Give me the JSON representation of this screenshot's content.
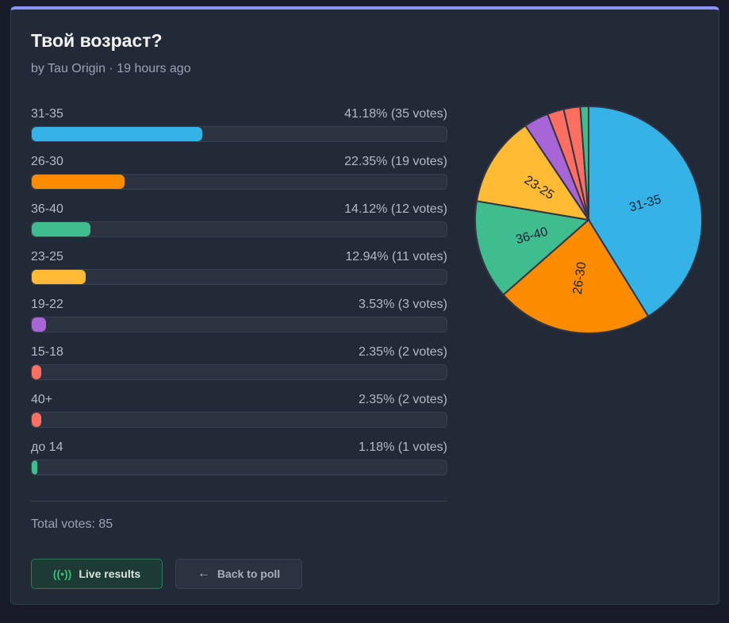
{
  "poll": {
    "title": "Твой возраст?",
    "meta": "by Tau Origin · 19 hours ago",
    "total_label": "Total votes: 85"
  },
  "chart_data": {
    "type": "pie",
    "slices": [
      {
        "label": "31-35",
        "percent": 41.18,
        "votes": 35,
        "display": "41.18% (35 votes)",
        "color": "#36b3e6"
      },
      {
        "label": "26-30",
        "percent": 22.35,
        "votes": 19,
        "display": "22.35% (19 votes)",
        "color": "#fb8c00"
      },
      {
        "label": "36-40",
        "percent": 14.12,
        "votes": 12,
        "display": "14.12% (12 votes)",
        "color": "#3fbd8e"
      },
      {
        "label": "23-25",
        "percent": 12.94,
        "votes": 11,
        "display": "12.94% (11 votes)",
        "color": "#ffbb33"
      },
      {
        "label": "19-22",
        "percent": 3.53,
        "votes": 3,
        "display": "3.53% (3 votes)",
        "color": "#a865d6"
      },
      {
        "label": "15-18",
        "percent": 2.35,
        "votes": 2,
        "display": "2.35% (2 votes)",
        "color": "#ff6f61"
      },
      {
        "label": "40+",
        "percent": 2.35,
        "votes": 2,
        "display": "2.35% (2 votes)",
        "color": "#ff6f61"
      },
      {
        "label": "до 14",
        "percent": 1.18,
        "votes": 1,
        "display": "1.18% (1 votes)",
        "color": "#3fbd8e"
      }
    ],
    "slice_labels_shown": [
      "31-35",
      "26-30",
      "36-40",
      "23-25"
    ]
  },
  "buttons": {
    "live": {
      "label": "Live results",
      "icon": "broadcast-icon"
    },
    "back": {
      "label": "Back to poll",
      "icon": "arrow-left-icon"
    }
  },
  "colors": {
    "accent_top": "#8b93f7",
    "card_bg": "#222a38",
    "page_bg": "#171c28"
  }
}
